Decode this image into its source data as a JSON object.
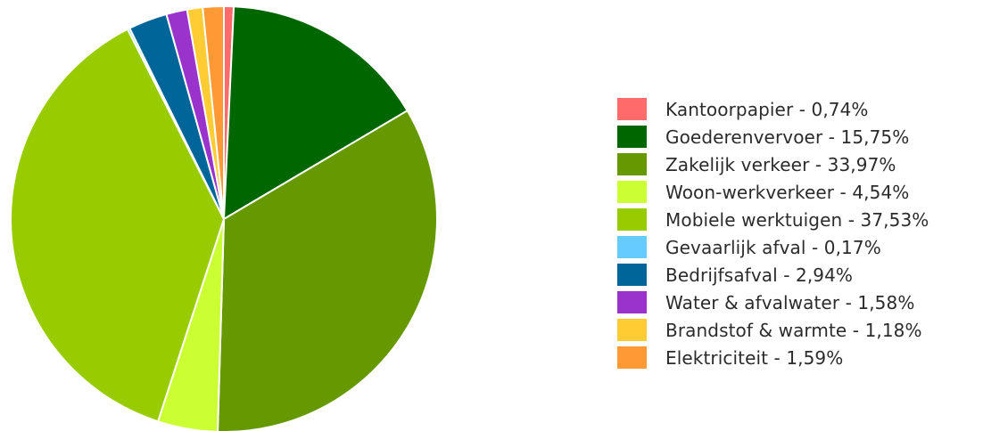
{
  "chart_data": {
    "type": "pie",
    "series": [
      {
        "name": "Kantoorpapier",
        "value": 0.74,
        "label": "Kantoorpapier - 0,74%",
        "color": "#ff6b6b"
      },
      {
        "name": "Goederenvervoer",
        "value": 15.75,
        "label": "Goederenvervoer - 15,75%",
        "color": "#006600"
      },
      {
        "name": "Zakelijk verkeer",
        "value": 33.97,
        "label": "Zakelijk verkeer - 33,97%",
        "color": "#669900"
      },
      {
        "name": "Woon-werkverkeer",
        "value": 4.54,
        "label": "Woon-werkverkeer - 4,54%",
        "color": "#ccff33"
      },
      {
        "name": "Mobiele werktuigen",
        "value": 37.53,
        "label": "Mobiele werktuigen - 37,53%",
        "color": "#99cc00"
      },
      {
        "name": "Gevaarlijk afval",
        "value": 0.17,
        "label": "Gevaarlijk afval - 0,17%",
        "color": "#66ccff"
      },
      {
        "name": "Bedrijfsafval",
        "value": 2.94,
        "label": "Bedrijfsafval - 2,94%",
        "color": "#006699"
      },
      {
        "name": "Water & afvalwater",
        "value": 1.58,
        "label": "Water & afvalwater - 1,58%",
        "color": "#9933cc"
      },
      {
        "name": "Brandstof & warmte",
        "value": 1.18,
        "label": "Brandstof & warmte - 1,18%",
        "color": "#ffcc33"
      },
      {
        "name": "Elektriciteit",
        "value": 1.59,
        "label": "Elektriciteit - 1,59%",
        "color": "#ff9933"
      }
    ],
    "legend_position": "right"
  }
}
